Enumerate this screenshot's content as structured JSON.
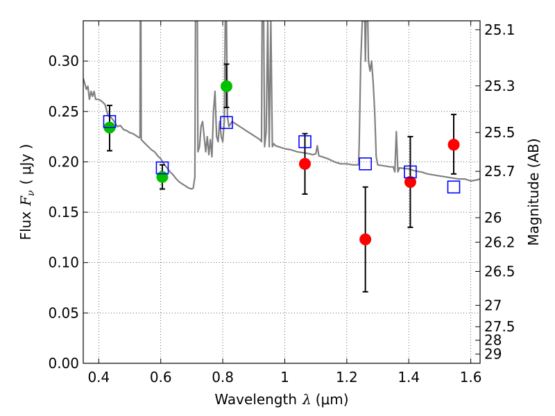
{
  "chart_data": {
    "type": "scatter",
    "xlabel": {
      "prefix": "Wavelength",
      "symbol": "λ",
      "unit": "(μm)"
    },
    "ylabel": {
      "prefix": "Flux",
      "symbol": "F",
      "subscript": "ν",
      "unit": "( μJy )"
    },
    "y2label": "Magnitude (AB)",
    "xlim": [
      0.35,
      1.63
    ],
    "ylim": [
      0.0,
      0.34
    ],
    "grid": true,
    "x_ticks": [
      {
        "value": 0.4,
        "label": "0.4"
      },
      {
        "value": 0.6,
        "label": "0.6"
      },
      {
        "value": 0.8,
        "label": "0.8"
      },
      {
        "value": 1.0,
        "label": "1"
      },
      {
        "value": 1.2,
        "label": "1.2"
      },
      {
        "value": 1.4,
        "label": "1.4"
      },
      {
        "value": 1.6,
        "label": "1.6"
      }
    ],
    "y_ticks": [
      {
        "value": 0.0,
        "label": "0.00"
      },
      {
        "value": 0.05,
        "label": "0.05"
      },
      {
        "value": 0.1,
        "label": "0.10"
      },
      {
        "value": 0.15,
        "label": "0.15"
      },
      {
        "value": 0.2,
        "label": "0.20"
      },
      {
        "value": 0.25,
        "label": "0.25"
      },
      {
        "value": 0.3,
        "label": "0.30"
      }
    ],
    "y2_ticks": [
      {
        "mag": 25.1,
        "label": "25.1"
      },
      {
        "mag": 25.3,
        "label": "25.3"
      },
      {
        "mag": 25.5,
        "label": "25.5"
      },
      {
        "mag": 25.7,
        "label": "25.7"
      },
      {
        "mag": 26.0,
        "label": "26"
      },
      {
        "mag": 26.2,
        "label": "26.2"
      },
      {
        "mag": 26.5,
        "label": "26.5"
      },
      {
        "mag": 27.0,
        "label": "27"
      },
      {
        "mag": 27.5,
        "label": "27.5"
      },
      {
        "mag": 28.0,
        "label": "28"
      },
      {
        "mag": 29.0,
        "label": "29"
      }
    ],
    "model_spectrum": {
      "color": "#808080",
      "points": [
        [
          0.35,
          0.283
        ],
        [
          0.36,
          0.272
        ],
        [
          0.365,
          0.275
        ],
        [
          0.37,
          0.262
        ],
        [
          0.375,
          0.27
        ],
        [
          0.38,
          0.265
        ],
        [
          0.385,
          0.27
        ],
        [
          0.39,
          0.262
        ],
        [
          0.4,
          0.262
        ],
        [
          0.41,
          0.26
        ],
        [
          0.42,
          0.257
        ],
        [
          0.43,
          0.246
        ],
        [
          0.44,
          0.244
        ],
        [
          0.45,
          0.24
        ],
        [
          0.46,
          0.235
        ],
        [
          0.47,
          0.236
        ],
        [
          0.48,
          0.232
        ],
        [
          0.49,
          0.231
        ],
        [
          0.5,
          0.229
        ],
        [
          0.51,
          0.228
        ],
        [
          0.52,
          0.226
        ],
        [
          0.53,
          0.224
        ],
        [
          0.533,
          0.224
        ],
        [
          0.534,
          0.34
        ],
        [
          0.536,
          0.34
        ],
        [
          0.537,
          0.222
        ],
        [
          0.55,
          0.218
        ],
        [
          0.56,
          0.215
        ],
        [
          0.57,
          0.212
        ],
        [
          0.58,
          0.21
        ],
        [
          0.59,
          0.206
        ],
        [
          0.6,
          0.203
        ],
        [
          0.61,
          0.198
        ],
        [
          0.62,
          0.194
        ],
        [
          0.63,
          0.19
        ],
        [
          0.64,
          0.187
        ],
        [
          0.65,
          0.183
        ],
        [
          0.66,
          0.18
        ],
        [
          0.67,
          0.178
        ],
        [
          0.68,
          0.176
        ],
        [
          0.69,
          0.174
        ],
        [
          0.7,
          0.173
        ],
        [
          0.705,
          0.174
        ],
        [
          0.71,
          0.185
        ],
        [
          0.712,
          0.34
        ],
        [
          0.718,
          0.34
        ],
        [
          0.72,
          0.21
        ],
        [
          0.725,
          0.215
        ],
        [
          0.73,
          0.235
        ],
        [
          0.735,
          0.24
        ],
        [
          0.74,
          0.225
        ],
        [
          0.745,
          0.21
        ],
        [
          0.75,
          0.225
        ],
        [
          0.755,
          0.207
        ],
        [
          0.76,
          0.222
        ],
        [
          0.765,
          0.205
        ],
        [
          0.77,
          0.25
        ],
        [
          0.775,
          0.27
        ],
        [
          0.78,
          0.225
        ],
        [
          0.785,
          0.22
        ],
        [
          0.79,
          0.24
        ],
        [
          0.795,
          0.225
        ],
        [
          0.8,
          0.22
        ],
        [
          0.805,
          0.24
        ],
        [
          0.808,
          0.34
        ],
        [
          0.812,
          0.34
        ],
        [
          0.815,
          0.245
        ],
        [
          0.82,
          0.235
        ],
        [
          0.83,
          0.24
        ],
        [
          0.84,
          0.238
        ],
        [
          0.85,
          0.236
        ],
        [
          0.86,
          0.234
        ],
        [
          0.87,
          0.232
        ],
        [
          0.88,
          0.23
        ],
        [
          0.89,
          0.228
        ],
        [
          0.9,
          0.226
        ],
        [
          0.91,
          0.224
        ],
        [
          0.92,
          0.222
        ],
        [
          0.925,
          0.22
        ],
        [
          0.927,
          0.34
        ],
        [
          0.932,
          0.34
        ],
        [
          0.935,
          0.215
        ],
        [
          0.94,
          0.23
        ],
        [
          0.945,
          0.34
        ],
        [
          0.95,
          0.215
        ],
        [
          0.955,
          0.34
        ],
        [
          0.96,
          0.215
        ],
        [
          0.965,
          0.218
        ],
        [
          0.97,
          0.216
        ],
        [
          0.98,
          0.215
        ],
        [
          1.0,
          0.213
        ],
        [
          1.02,
          0.212
        ],
        [
          1.04,
          0.21
        ],
        [
          1.06,
          0.209
        ],
        [
          1.08,
          0.208
        ],
        [
          1.09,
          0.207
        ],
        [
          1.1,
          0.208
        ],
        [
          1.105,
          0.216
        ],
        [
          1.11,
          0.206
        ],
        [
          1.12,
          0.205
        ],
        [
          1.14,
          0.203
        ],
        [
          1.16,
          0.2
        ],
        [
          1.18,
          0.198
        ],
        [
          1.2,
          0.198
        ],
        [
          1.22,
          0.197
        ],
        [
          1.238,
          0.197
        ],
        [
          1.24,
          0.215
        ],
        [
          1.245,
          0.3
        ],
        [
          1.25,
          0.34
        ],
        [
          1.258,
          0.34
        ],
        [
          1.26,
          0.3
        ],
        [
          1.262,
          0.34
        ],
        [
          1.268,
          0.34
        ],
        [
          1.27,
          0.3
        ],
        [
          1.275,
          0.29
        ],
        [
          1.28,
          0.3
        ],
        [
          1.285,
          0.28
        ],
        [
          1.29,
          0.25
        ],
        [
          1.295,
          0.205
        ],
        [
          1.3,
          0.197
        ],
        [
          1.32,
          0.196
        ],
        [
          1.34,
          0.195
        ],
        [
          1.35,
          0.195
        ],
        [
          1.355,
          0.19
        ],
        [
          1.36,
          0.23
        ],
        [
          1.365,
          0.19
        ],
        [
          1.37,
          0.194
        ],
        [
          1.4,
          0.193
        ],
        [
          1.42,
          0.191
        ],
        [
          1.44,
          0.19
        ],
        [
          1.46,
          0.188
        ],
        [
          1.48,
          0.187
        ],
        [
          1.5,
          0.186
        ],
        [
          1.52,
          0.185
        ],
        [
          1.54,
          0.184
        ],
        [
          1.56,
          0.183
        ],
        [
          1.58,
          0.183
        ],
        [
          1.6,
          0.181
        ],
        [
          1.62,
          0.182
        ],
        [
          1.63,
          0.183
        ]
      ]
    },
    "model_photometry": {
      "marker": "open-square",
      "color": "#0000ff",
      "points": [
        {
          "x": 0.435,
          "y": 0.24
        },
        {
          "x": 0.605,
          "y": 0.194
        },
        {
          "x": 0.812,
          "y": 0.239
        },
        {
          "x": 1.065,
          "y": 0.22
        },
        {
          "x": 1.26,
          "y": 0.198
        },
        {
          "x": 1.405,
          "y": 0.19
        },
        {
          "x": 1.545,
          "y": 0.175
        }
      ]
    },
    "observed_optical": {
      "marker": "filled-circle",
      "color": "#00c000",
      "points": [
        {
          "x": 0.435,
          "y": 0.234,
          "yerr_low": 0.211,
          "yerr_high": 0.256
        },
        {
          "x": 0.605,
          "y": 0.185,
          "yerr_low": 0.173,
          "yerr_high": 0.197
        },
        {
          "x": 0.812,
          "y": 0.275,
          "yerr_low": 0.254,
          "yerr_high": 0.297
        }
      ]
    },
    "observed_nir": {
      "marker": "filled-circle",
      "color": "#ff0000",
      "points": [
        {
          "x": 1.065,
          "y": 0.198,
          "yerr_low": 0.168,
          "yerr_high": 0.228
        },
        {
          "x": 1.26,
          "y": 0.123,
          "yerr_low": 0.071,
          "yerr_high": 0.175
        },
        {
          "x": 1.405,
          "y": 0.18,
          "yerr_low": 0.135,
          "yerr_high": 0.225
        },
        {
          "x": 1.545,
          "y": 0.217,
          "yerr_low": 0.188,
          "yerr_high": 0.247
        }
      ]
    }
  }
}
